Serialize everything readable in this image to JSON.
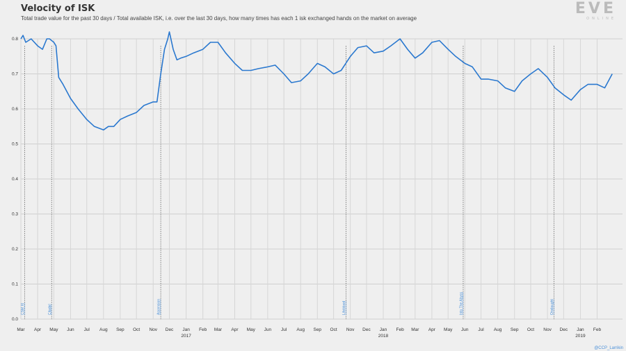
{
  "title": "Velocity of ISK",
  "subtitle": "Total trade value for the past 30 days / Total available ISK, i.e. over the last 30 days, how many times has each 1 isk exchanged hands on the market on average",
  "logo": {
    "main": "EVE",
    "sub": "ONLINE"
  },
  "credit": "@CCP_Larrikin",
  "chart_data": {
    "type": "line",
    "title": "Velocity of ISK",
    "xlabel": "",
    "ylabel": "",
    "ylim": [
      0,
      0.8
    ],
    "yticks": [
      "0.0",
      "0.1",
      "0.2",
      "0.3",
      "0.4",
      "0.5",
      "0.6",
      "0.7",
      "0.8"
    ],
    "xlim": [
      "2016-03",
      "2019-03"
    ],
    "xticks": [
      "Mar",
      "Apr",
      "May",
      "Jun",
      "Jul",
      "Aug",
      "Sep",
      "Oct",
      "Nov",
      "Dec",
      "Jan",
      "Feb",
      "Mar",
      "Apr",
      "May",
      "Jun",
      "Jul",
      "Aug",
      "Sep",
      "Oct",
      "Nov",
      "Dec",
      "Jan",
      "Feb",
      "Mar",
      "Apr",
      "May",
      "Jun",
      "Jul",
      "Aug",
      "Sep",
      "Oct",
      "Nov",
      "Dec",
      "Jan",
      "Feb"
    ],
    "year_labels": [
      {
        "tick": "Jan",
        "year": "2017"
      },
      {
        "tick": "Jan",
        "year": "2018"
      },
      {
        "tick": "Jan",
        "year": "2019"
      }
    ],
    "grid": true,
    "events": [
      {
        "label": "CSM XI",
        "x": "2016-03-08"
      },
      {
        "label": "Citadel",
        "x": "2016-04-27"
      },
      {
        "label": "Ascension",
        "x": "2016-11-15"
      },
      {
        "label": "Lifeblood",
        "x": "2017-10-24"
      },
      {
        "label": "Into The Abyss",
        "x": "2018-05-29"
      },
      {
        "label": "Onslaught",
        "x": "2018-11-13"
      }
    ],
    "series": [
      {
        "color": "#2a78cf",
        "x": [
          "2016-03-01",
          "2016-03-05",
          "2016-03-10",
          "2016-03-20",
          "2016-04-01",
          "2016-04-10",
          "2016-04-18",
          "2016-04-23",
          "2016-05-01",
          "2016-05-05",
          "2016-05-10",
          "2016-05-18",
          "2016-06-01",
          "2016-06-15",
          "2016-07-01",
          "2016-07-15",
          "2016-08-01",
          "2016-08-10",
          "2016-08-20",
          "2016-09-01",
          "2016-09-15",
          "2016-10-01",
          "2016-10-15",
          "2016-11-01",
          "2016-11-08",
          "2016-11-15",
          "2016-11-22",
          "2016-11-28",
          "2016-12-01",
          "2016-12-08",
          "2016-12-15",
          "2016-12-22",
          "2017-01-01",
          "2017-01-15",
          "2017-02-01",
          "2017-02-15",
          "2017-03-01",
          "2017-03-15",
          "2017-04-01",
          "2017-04-15",
          "2017-05-01",
          "2017-05-15",
          "2017-06-01",
          "2017-06-15",
          "2017-07-01",
          "2017-07-15",
          "2017-08-01",
          "2017-08-15",
          "2017-09-01",
          "2017-09-15",
          "2017-10-01",
          "2017-10-15",
          "2017-11-01",
          "2017-11-15",
          "2017-12-01",
          "2017-12-15",
          "2018-01-01",
          "2018-01-15",
          "2018-02-01",
          "2018-02-15",
          "2018-03-01",
          "2018-03-15",
          "2018-04-01",
          "2018-04-15",
          "2018-05-01",
          "2018-05-15",
          "2018-06-01",
          "2018-06-15",
          "2018-07-01",
          "2018-07-15",
          "2018-08-01",
          "2018-08-15",
          "2018-09-01",
          "2018-09-15",
          "2018-10-01",
          "2018-10-15",
          "2018-11-01",
          "2018-11-15",
          "2018-12-01",
          "2018-12-15",
          "2019-01-01",
          "2019-01-15",
          "2019-02-01",
          "2019-02-15",
          "2019-03-01"
        ],
        "y": [
          0.8,
          0.81,
          0.79,
          0.8,
          0.78,
          0.77,
          0.8,
          0.8,
          0.79,
          0.78,
          0.69,
          0.67,
          0.63,
          0.6,
          0.57,
          0.55,
          0.54,
          0.55,
          0.55,
          0.57,
          0.58,
          0.59,
          0.61,
          0.62,
          0.62,
          0.7,
          0.77,
          0.8,
          0.82,
          0.77,
          0.74,
          0.745,
          0.75,
          0.76,
          0.77,
          0.79,
          0.79,
          0.76,
          0.73,
          0.71,
          0.71,
          0.715,
          0.72,
          0.725,
          0.7,
          0.675,
          0.68,
          0.7,
          0.73,
          0.72,
          0.7,
          0.71,
          0.75,
          0.775,
          0.78,
          0.76,
          0.765,
          0.78,
          0.8,
          0.77,
          0.745,
          0.76,
          0.79,
          0.795,
          0.77,
          0.75,
          0.73,
          0.72,
          0.685,
          0.685,
          0.68,
          0.66,
          0.65,
          0.68,
          0.7,
          0.715,
          0.69,
          0.66,
          0.64,
          0.625,
          0.655,
          0.67,
          0.67,
          0.66,
          0.7
        ]
      }
    ]
  }
}
